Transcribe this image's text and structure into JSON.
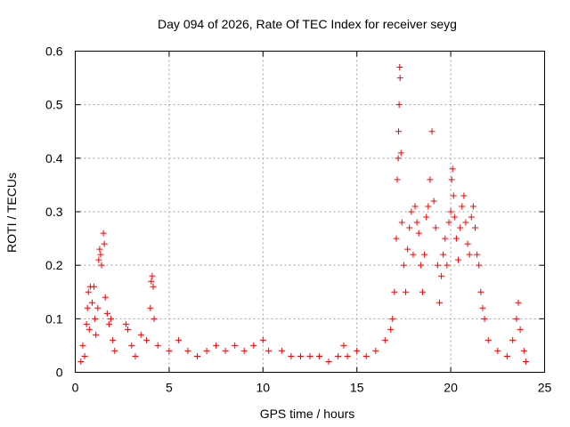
{
  "chart_data": {
    "type": "scatter",
    "title": "Day 094 of 2026, Rate Of TEC Index for receiver seyg",
    "xlabel": "GPS time / hours",
    "ylabel": "ROTI / TECUs",
    "xlim": [
      0,
      25
    ],
    "ylim": [
      0,
      0.6
    ],
    "xticks": [
      0,
      5,
      10,
      15,
      20,
      25
    ],
    "yticks": [
      0,
      0.1,
      0.2,
      0.3,
      0.4,
      0.5,
      0.6
    ],
    "xtick_labels": [
      "0",
      "5",
      "10",
      "15",
      "20",
      "25"
    ],
    "ytick_labels": [
      "0",
      "0.1",
      "0.2",
      "0.3",
      "0.4",
      "0.5",
      "0.6"
    ],
    "grid": true,
    "marker": "+",
    "color": "#ff0000",
    "series": [
      {
        "points": [
          [
            0.3,
            0.02
          ],
          [
            0.4,
            0.05
          ],
          [
            0.5,
            0.03
          ],
          [
            0.6,
            0.09
          ],
          [
            0.65,
            0.12
          ],
          [
            0.7,
            0.15
          ],
          [
            0.75,
            0.08
          ],
          [
            0.8,
            0.16
          ],
          [
            0.9,
            0.13
          ],
          [
            1.0,
            0.16
          ],
          [
            1.05,
            0.1
          ],
          [
            1.1,
            0.07
          ],
          [
            1.2,
            0.12
          ],
          [
            1.25,
            0.21
          ],
          [
            1.3,
            0.23
          ],
          [
            1.35,
            0.22
          ],
          [
            1.4,
            0.2
          ],
          [
            1.5,
            0.26
          ],
          [
            1.55,
            0.24
          ],
          [
            1.6,
            0.14
          ],
          [
            1.7,
            0.11
          ],
          [
            1.8,
            0.09
          ],
          [
            1.9,
            0.1
          ],
          [
            2.0,
            0.06
          ],
          [
            2.1,
            0.04
          ],
          [
            2.7,
            0.09
          ],
          [
            2.8,
            0.08
          ],
          [
            3.0,
            0.05
          ],
          [
            3.2,
            0.03
          ],
          [
            3.5,
            0.07
          ],
          [
            3.8,
            0.06
          ],
          [
            4.0,
            0.12
          ],
          [
            4.05,
            0.17
          ],
          [
            4.1,
            0.18
          ],
          [
            4.15,
            0.16
          ],
          [
            4.2,
            0.1
          ],
          [
            4.4,
            0.05
          ],
          [
            5.0,
            0.04
          ],
          [
            5.5,
            0.06
          ],
          [
            6.0,
            0.04
          ],
          [
            6.5,
            0.03
          ],
          [
            7.0,
            0.04
          ],
          [
            7.5,
            0.05
          ],
          [
            8.0,
            0.04
          ],
          [
            8.5,
            0.05
          ],
          [
            9.0,
            0.04
          ],
          [
            9.5,
            0.05
          ],
          [
            10.0,
            0.06
          ],
          [
            10.3,
            0.04
          ],
          [
            11.0,
            0.04
          ],
          [
            11.5,
            0.03
          ],
          [
            12.0,
            0.03
          ],
          [
            12.5,
            0.03
          ],
          [
            13.0,
            0.03
          ],
          [
            13.5,
            0.02
          ],
          [
            14.0,
            0.03
          ],
          [
            14.3,
            0.05
          ],
          [
            14.5,
            0.03
          ],
          [
            15.0,
            0.04
          ],
          [
            15.5,
            0.03
          ],
          [
            16.0,
            0.04
          ],
          [
            16.5,
            0.06
          ],
          [
            16.8,
            0.08
          ],
          [
            16.9,
            0.1
          ],
          [
            17.0,
            0.15
          ],
          [
            17.1,
            0.25
          ],
          [
            17.15,
            0.36
          ],
          [
            17.2,
            0.4
          ],
          [
            17.22,
            0.45
          ],
          [
            17.25,
            0.5
          ],
          [
            17.28,
            0.57
          ],
          [
            17.3,
            0.55
          ],
          [
            17.35,
            0.41
          ],
          [
            17.4,
            0.28
          ],
          [
            17.5,
            0.2
          ],
          [
            17.6,
            0.15
          ],
          [
            17.7,
            0.23
          ],
          [
            17.8,
            0.27
          ],
          [
            17.9,
            0.3
          ],
          [
            18.0,
            0.22
          ],
          [
            18.1,
            0.31
          ],
          [
            18.2,
            0.28
          ],
          [
            18.3,
            0.26
          ],
          [
            18.4,
            0.2
          ],
          [
            18.5,
            0.15
          ],
          [
            18.6,
            0.22
          ],
          [
            18.7,
            0.29
          ],
          [
            18.8,
            0.31
          ],
          [
            18.9,
            0.36
          ],
          [
            19.0,
            0.45
          ],
          [
            19.1,
            0.32
          ],
          [
            19.2,
            0.27
          ],
          [
            19.3,
            0.2
          ],
          [
            19.4,
            0.13
          ],
          [
            19.5,
            0.18
          ],
          [
            19.6,
            0.22
          ],
          [
            19.7,
            0.25
          ],
          [
            19.8,
            0.2
          ],
          [
            19.9,
            0.28
          ],
          [
            20.0,
            0.3
          ],
          [
            20.05,
            0.36
          ],
          [
            20.1,
            0.38
          ],
          [
            20.15,
            0.33
          ],
          [
            20.2,
            0.29
          ],
          [
            20.3,
            0.25
          ],
          [
            20.4,
            0.21
          ],
          [
            20.5,
            0.27
          ],
          [
            20.6,
            0.31
          ],
          [
            20.7,
            0.33
          ],
          [
            20.8,
            0.28
          ],
          [
            20.9,
            0.24
          ],
          [
            21.0,
            0.22
          ],
          [
            21.1,
            0.29
          ],
          [
            21.2,
            0.31
          ],
          [
            21.3,
            0.27
          ],
          [
            21.4,
            0.22
          ],
          [
            21.5,
            0.2
          ],
          [
            21.6,
            0.15
          ],
          [
            21.7,
            0.12
          ],
          [
            21.8,
            0.1
          ],
          [
            22.0,
            0.06
          ],
          [
            22.5,
            0.04
          ],
          [
            23.0,
            0.03
          ],
          [
            23.3,
            0.06
          ],
          [
            23.5,
            0.1
          ],
          [
            23.6,
            0.13
          ],
          [
            23.7,
            0.08
          ],
          [
            23.9,
            0.04
          ],
          [
            24.0,
            0.02
          ]
        ]
      }
    ]
  }
}
